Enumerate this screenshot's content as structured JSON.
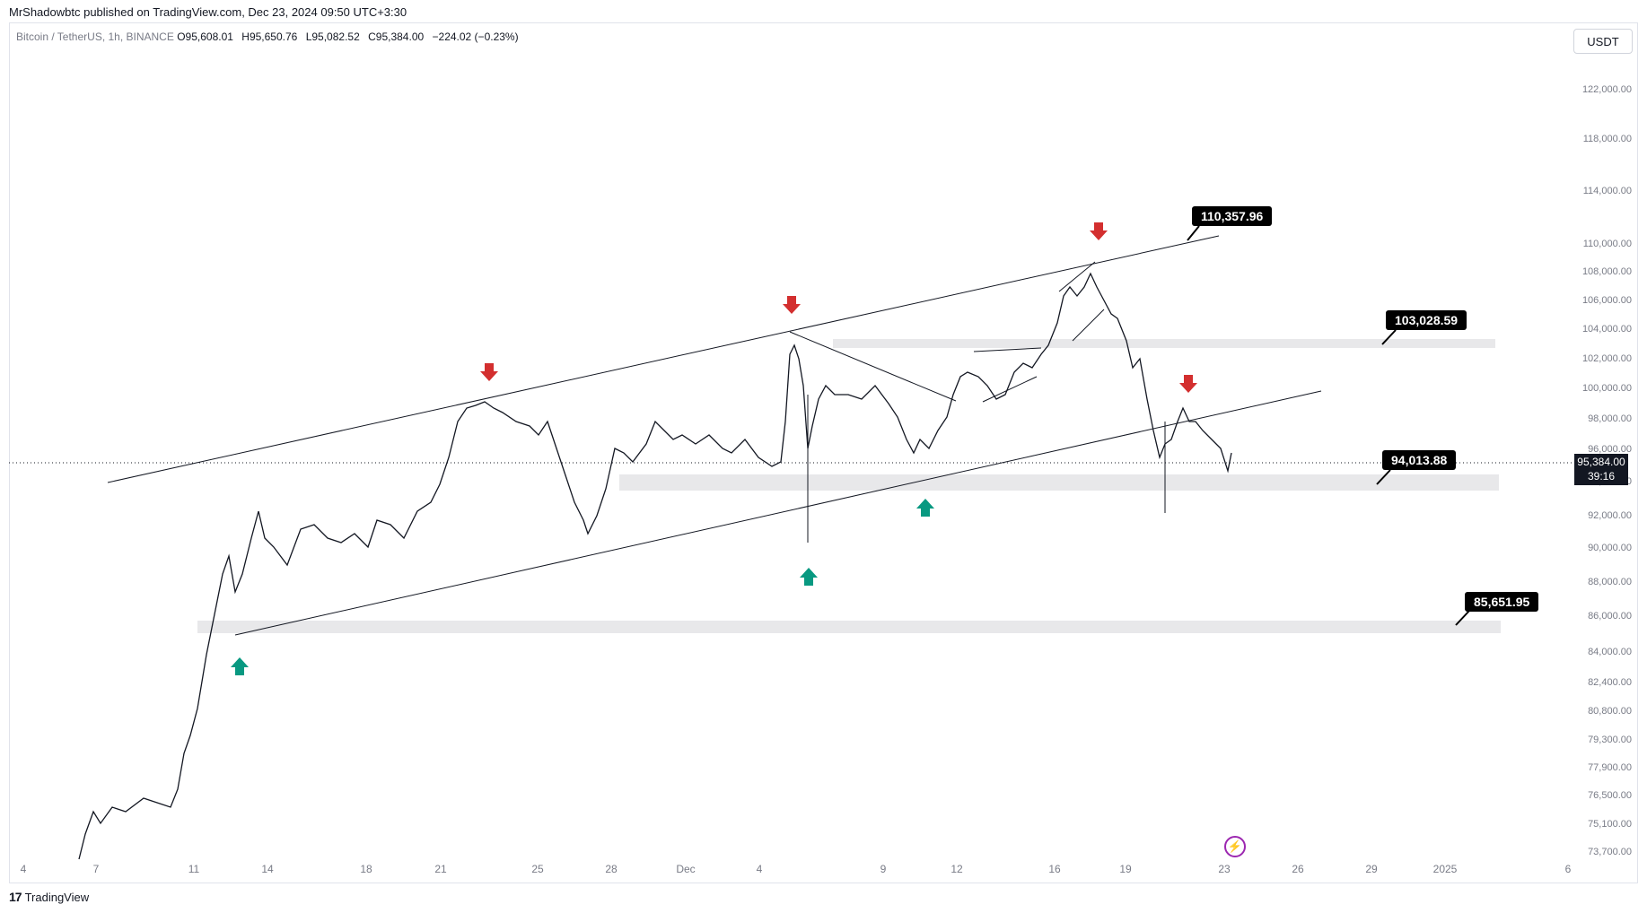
{
  "publisher": "MrShadowbtc published on TradingView.com, Dec 23, 2024 09:50 UTC+3:30",
  "symbol": {
    "name": "Bitcoin / TetherUS, 1h, BINANCE",
    "o_label": "O",
    "o": "95,608.01",
    "h_label": "H",
    "h": "95,650.76",
    "l_label": "L",
    "l": "95,082.52",
    "c_label": "C",
    "c": "95,384.00",
    "change": "−224.02 (−0.23%)"
  },
  "currency": "USDT",
  "last_price": {
    "value": "95,384.00",
    "countdown": "39:16"
  },
  "price_ticks": [
    "122,000.00",
    "118,000.00",
    "114,000.00",
    "110,000.00",
    "108,000.00",
    "106,000.00",
    "104,000.00",
    "102,000.00",
    "100,000.00",
    "98,000.00",
    "96,000.00",
    "94,000.00",
    "92,000.00",
    "90,000.00",
    "88,000.00",
    "86,000.00",
    "84,000.00",
    "82,400.00",
    "80,800.00",
    "79,300.00",
    "77,900.00",
    "76,500.00",
    "75,100.00",
    "73,700.00"
  ],
  "time_ticks": [
    "4",
    "7",
    "11",
    "14",
    "18",
    "21",
    "25",
    "28",
    "Dec",
    "4",
    "9",
    "12",
    "16",
    "19",
    "23",
    "26",
    "29",
    "2025",
    "6"
  ],
  "levels": [
    "110,357.96",
    "103,028.59",
    "94,013.88",
    "85,651.95"
  ],
  "footer": "TradingView",
  "colors": {
    "up_arrow": "#089981",
    "down_arrow": "#d32f2f",
    "zone": "#e8e8ea",
    "label_bg": "#000000"
  },
  "chart_data": {
    "type": "candlestick",
    "title": "Bitcoin / TetherUS, 1h, BINANCE",
    "x_range": [
      "Nov 4, 2024",
      "Jan 6, 2025"
    ],
    "ylim": [
      73000,
      124000
    ],
    "key_levels": [
      110357.96,
      103028.59,
      94013.88,
      85651.95
    ],
    "last": 95384.0
  }
}
